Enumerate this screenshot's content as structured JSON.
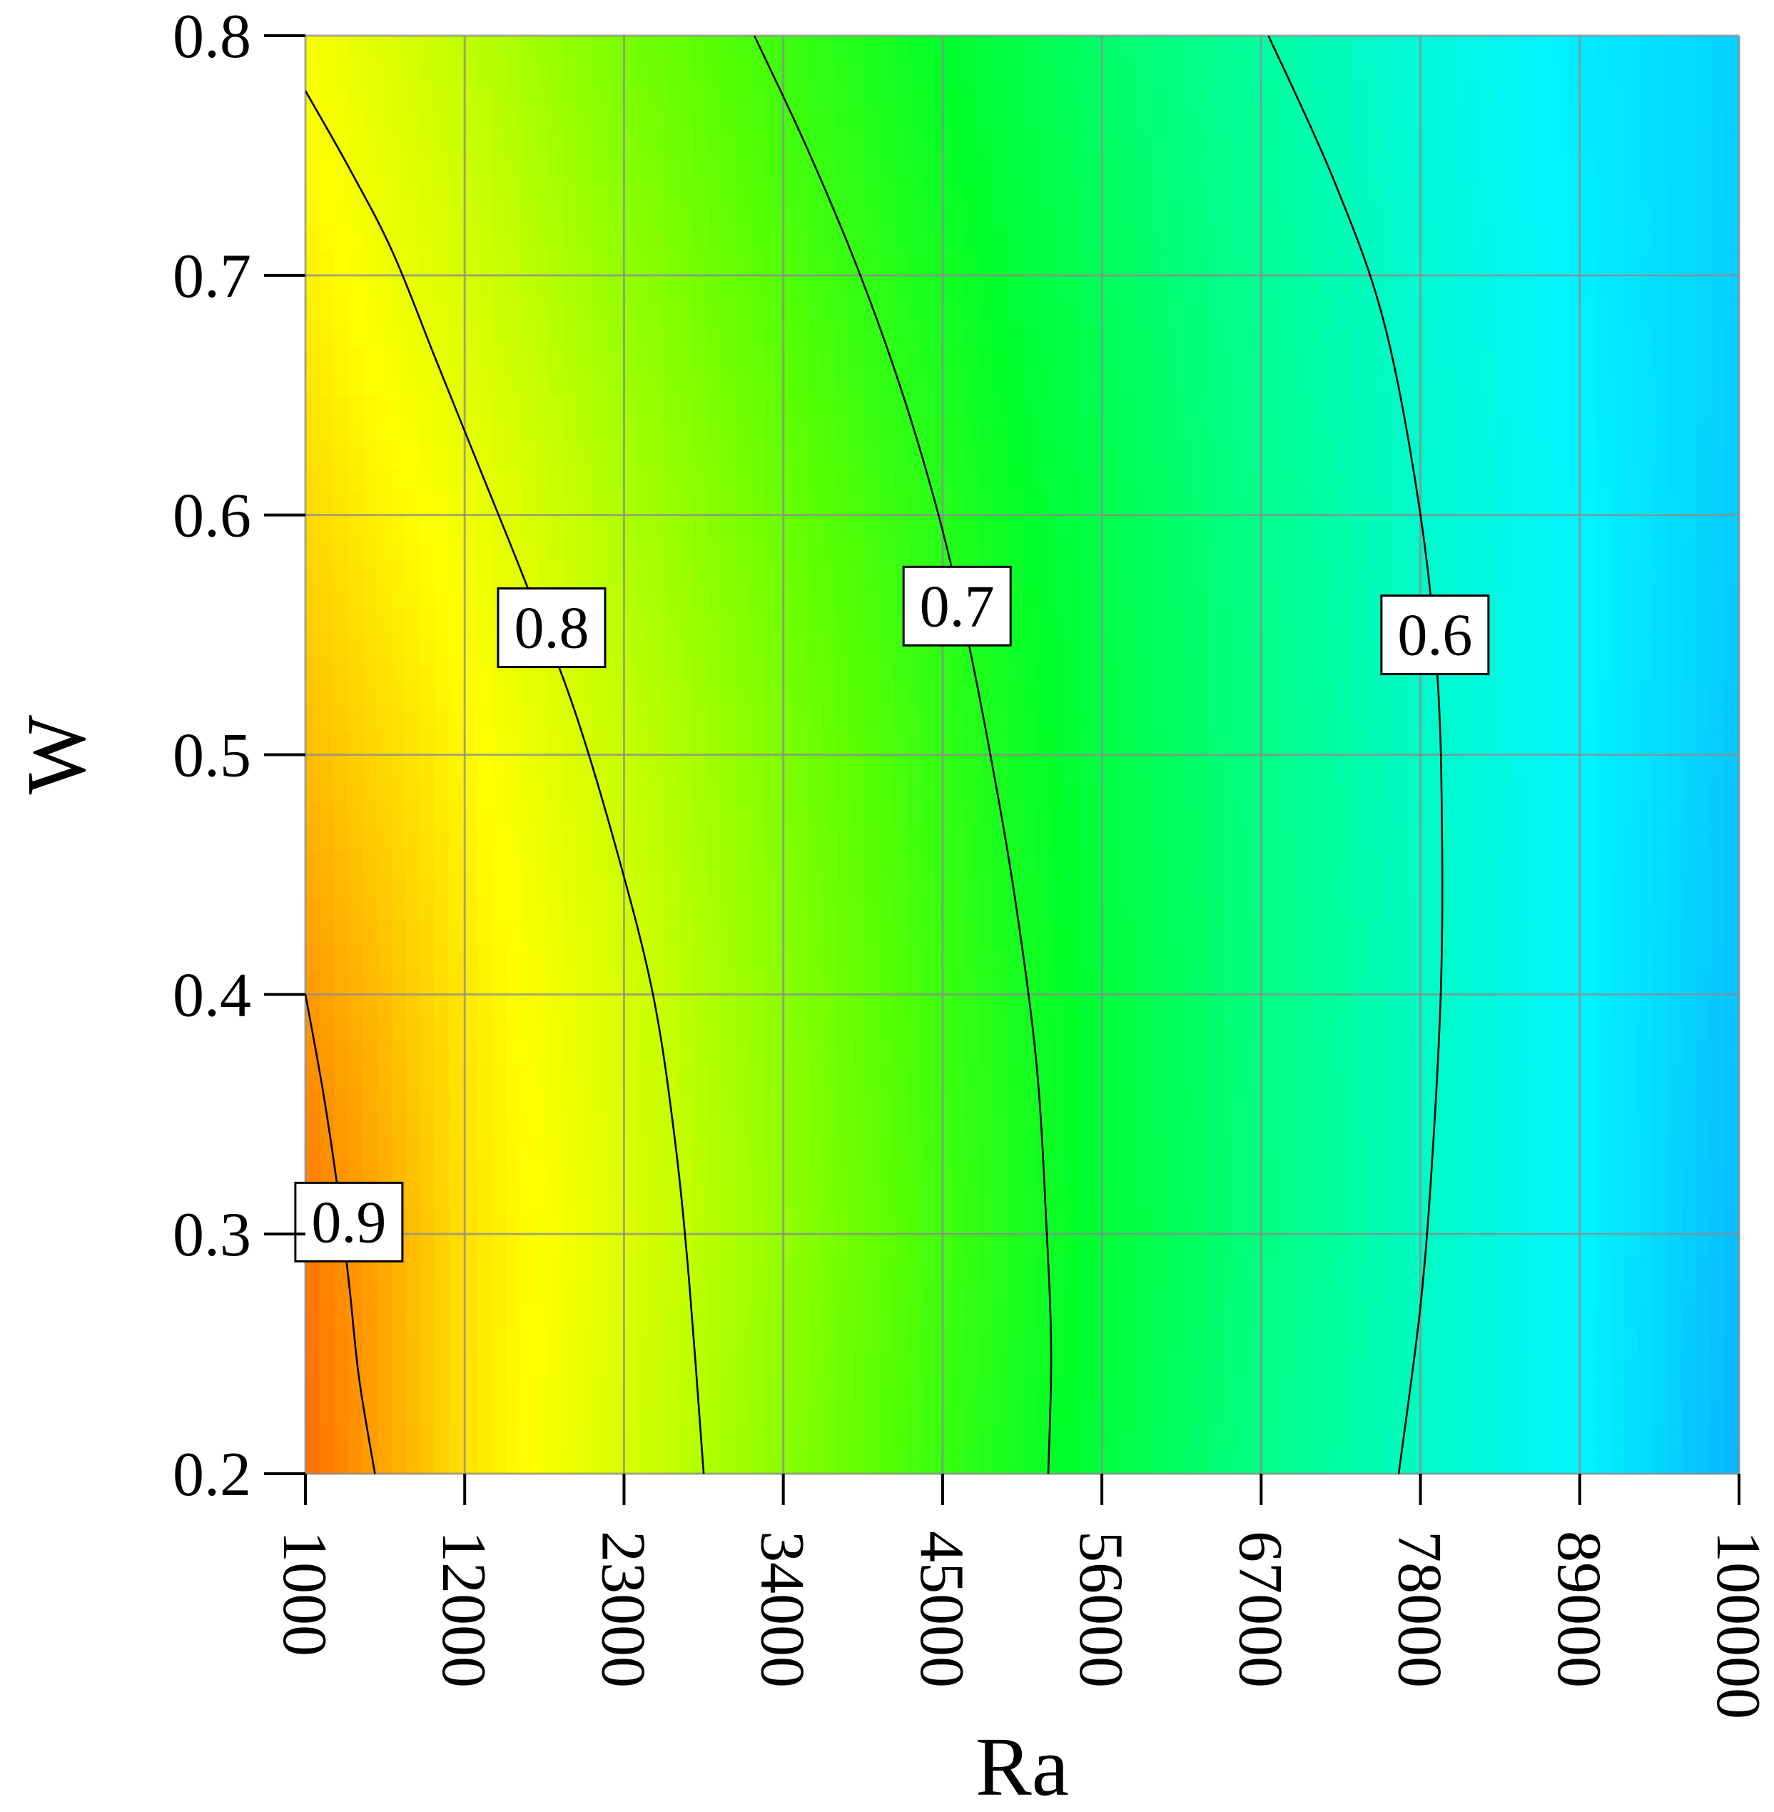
{
  "chart_data": {
    "type": "heatmap",
    "title": "",
    "xlabel": "Ra",
    "ylabel": "W",
    "xlim": [
      1000,
      100000
    ],
    "ylim": [
      0.2,
      0.8
    ],
    "x_ticks": [
      "1000",
      "12000",
      "23000",
      "34000",
      "45000",
      "56000",
      "67000",
      "78000",
      "89000",
      "100000"
    ],
    "y_ticks": [
      "0.2",
      "0.3",
      "0.4",
      "0.5",
      "0.6",
      "0.7",
      "0.8"
    ],
    "grid": true,
    "colormap": [
      {
        "value": 0.54,
        "color": "#0aa8ff"
      },
      {
        "value": 0.57,
        "color": "#00f5ff"
      },
      {
        "value": 0.62,
        "color": "#00ff9a"
      },
      {
        "value": 0.68,
        "color": "#00ff2a"
      },
      {
        "value": 0.73,
        "color": "#5cff00"
      },
      {
        "value": 0.79,
        "color": "#c8ff00"
      },
      {
        "value": 0.83,
        "color": "#ffff00"
      },
      {
        "value": 0.88,
        "color": "#ffb400"
      },
      {
        "value": 0.93,
        "color": "#ff6e00"
      }
    ],
    "field": {
      "W": [
        0.2,
        0.3,
        0.4,
        0.5,
        0.6,
        0.7,
        0.8
      ],
      "Ra": [
        1000,
        12000,
        23000,
        34000,
        45000,
        56000,
        67000,
        78000,
        89000,
        100000
      ],
      "values": [
        [
          0.93,
          0.85,
          0.8,
          0.755,
          0.71,
          0.67,
          0.63,
          0.6,
          0.57,
          0.545
        ],
        [
          0.925,
          0.85,
          0.805,
          0.76,
          0.715,
          0.675,
          0.635,
          0.6,
          0.57,
          0.548
        ],
        [
          0.9,
          0.845,
          0.8,
          0.755,
          0.712,
          0.672,
          0.634,
          0.6,
          0.57,
          0.55
        ],
        [
          0.875,
          0.835,
          0.79,
          0.748,
          0.707,
          0.668,
          0.632,
          0.598,
          0.57,
          0.552
        ],
        [
          0.855,
          0.82,
          0.775,
          0.737,
          0.7,
          0.663,
          0.628,
          0.595,
          0.57,
          0.554
        ],
        [
          0.84,
          0.8,
          0.76,
          0.724,
          0.69,
          0.655,
          0.623,
          0.592,
          0.568,
          0.555
        ],
        [
          0.825,
          0.785,
          0.745,
          0.712,
          0.68,
          0.647,
          0.617,
          0.588,
          0.566,
          0.556
        ]
      ]
    },
    "contours": [
      {
        "level": "0.9",
        "label_at": {
          "x": 4000,
          "y": 0.305
        },
        "points": [
          [
            1000,
            0.4
          ],
          [
            2200,
            0.36
          ],
          [
            3200,
            0.32
          ],
          [
            4000,
            0.28
          ],
          [
            4700,
            0.24
          ],
          [
            5800,
            0.2
          ]
        ]
      },
      {
        "level": "0.8",
        "label_at": {
          "x": 18000,
          "y": 0.553
        },
        "points": [
          [
            1000,
            0.777
          ],
          [
            4000,
            0.745
          ],
          [
            7000,
            0.71
          ],
          [
            10000,
            0.665
          ],
          [
            13000,
            0.62
          ],
          [
            16000,
            0.575
          ],
          [
            19500,
            0.52
          ],
          [
            22500,
            0.46
          ],
          [
            25000,
            0.4
          ],
          [
            26500,
            0.34
          ],
          [
            27500,
            0.28
          ],
          [
            28500,
            0.2
          ]
        ]
      },
      {
        "level": "0.7",
        "label_at": {
          "x": 46000,
          "y": 0.562
        },
        "points": [
          [
            32000,
            0.8
          ],
          [
            35500,
            0.755
          ],
          [
            39000,
            0.705
          ],
          [
            42000,
            0.655
          ],
          [
            44500,
            0.605
          ],
          [
            46500,
            0.555
          ],
          [
            48300,
            0.5
          ],
          [
            50000,
            0.44
          ],
          [
            51500,
            0.37
          ],
          [
            52200,
            0.3
          ],
          [
            52500,
            0.25
          ],
          [
            52300,
            0.2
          ]
        ]
      },
      {
        "level": "0.6",
        "label_at": {
          "x": 79000,
          "y": 0.55
        },
        "points": [
          [
            67500,
            0.8
          ],
          [
            72000,
            0.74
          ],
          [
            75500,
            0.68
          ],
          [
            78000,
            0.6
          ],
          [
            79200,
            0.53
          ],
          [
            79500,
            0.46
          ],
          [
            79400,
            0.4
          ],
          [
            78800,
            0.33
          ],
          [
            78000,
            0.27
          ],
          [
            76500,
            0.2
          ]
        ]
      }
    ]
  }
}
